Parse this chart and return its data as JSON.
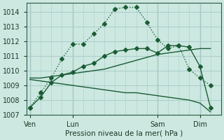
{
  "bg_color": "#cce8e0",
  "grid_color": "#aacccc",
  "line_color": "#1a5c35",
  "title": "Pression niveau de la mer( hPa )",
  "ylim": [
    1007,
    1014.6
  ],
  "yticks": [
    1007,
    1008,
    1009,
    1010,
    1011,
    1012,
    1013,
    1014
  ],
  "xtick_labels": [
    "Ven",
    "Lun",
    "Sam",
    "Dim"
  ],
  "xtick_pos": [
    0,
    24,
    72,
    96
  ],
  "xmin": -2,
  "xmax": 108,
  "line_dotted_x": [
    0,
    6,
    12,
    18,
    24,
    30,
    36,
    42,
    48,
    54,
    60,
    66,
    72,
    78,
    84,
    90,
    96,
    102
  ],
  "line_dotted_y": [
    1007.5,
    1008.5,
    1009.5,
    1010.8,
    1011.8,
    1011.8,
    1012.5,
    1013.2,
    1014.2,
    1014.3,
    1014.3,
    1013.3,
    1012.1,
    1011.5,
    1011.7,
    1010.1,
    1009.5,
    1009.0
  ],
  "line_main_x": [
    0,
    6,
    12,
    18,
    24,
    30,
    36,
    42,
    48,
    54,
    60,
    66,
    72,
    78,
    84,
    90,
    96,
    102
  ],
  "line_main_y": [
    1007.5,
    1008.2,
    1009.2,
    1009.7,
    1009.9,
    1010.3,
    1010.5,
    1011.0,
    1011.3,
    1011.4,
    1011.5,
    1011.5,
    1011.2,
    1011.7,
    1011.7,
    1011.6,
    1010.3,
    1007.5
  ],
  "line_upper_x": [
    0,
    6,
    12,
    18,
    24,
    30,
    36,
    42,
    48,
    54,
    60,
    66,
    72,
    78,
    84,
    90,
    96,
    102
  ],
  "line_upper_y": [
    1009.5,
    1009.5,
    1009.6,
    1009.7,
    1009.8,
    1009.9,
    1010.0,
    1010.1,
    1010.3,
    1010.5,
    1010.7,
    1010.9,
    1011.1,
    1011.2,
    1011.3,
    1011.4,
    1011.5,
    1011.5
  ],
  "line_lower_x": [
    0,
    6,
    12,
    18,
    24,
    30,
    36,
    42,
    48,
    54,
    60,
    66,
    72,
    78,
    84,
    90,
    96,
    102
  ],
  "line_lower_y": [
    1009.4,
    1009.3,
    1009.2,
    1009.1,
    1009.0,
    1008.9,
    1008.8,
    1008.7,
    1008.6,
    1008.5,
    1008.5,
    1008.4,
    1008.3,
    1008.2,
    1008.1,
    1008.0,
    1007.8,
    1007.2
  ],
  "vline_pos": [
    0,
    24,
    72,
    96
  ]
}
